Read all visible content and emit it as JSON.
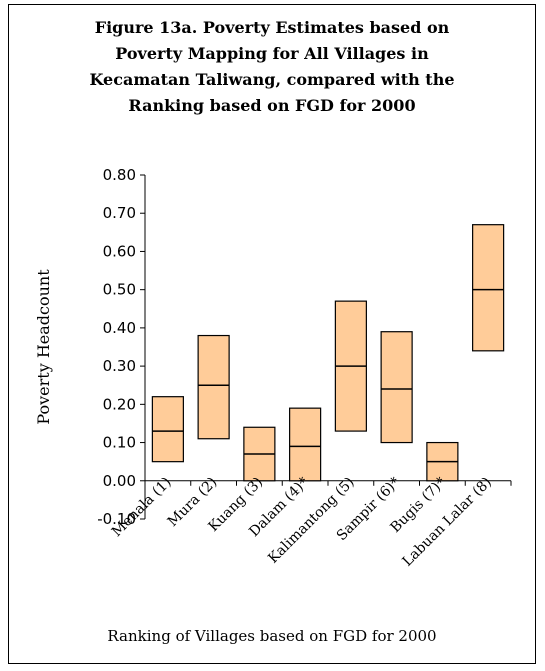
{
  "chart_data": {
    "type": "bar",
    "title_lines": [
      "Figure 13a. Poverty Estimates based on",
      "Poverty Mapping for All Villages in",
      "Kecamatan Taliwang, compared with the",
      "Ranking based on FGD for 2000"
    ],
    "xlabel": "Ranking of Villages based on FGD for 2000",
    "ylabel": "Poverty Headcount",
    "ylim": [
      -0.1,
      0.8
    ],
    "yticks": [
      "-0.10",
      "0.00",
      "0.10",
      "0.20",
      "0.30",
      "0.40",
      "0.50",
      "0.60",
      "0.70",
      "0.80"
    ],
    "categories": [
      "Menala (1)",
      "Mura (2)",
      "Kuang (3)",
      "Dalam (4)*",
      "Kalimantong (5)",
      "Sampir (6)*",
      "Bugis (7)*",
      "Labuan Lalar (8)"
    ],
    "series": [
      {
        "name": "",
        "low": [
          0.05,
          0.11,
          0.0,
          0.0,
          0.13,
          0.1,
          0.0,
          0.34
        ],
        "mid": [
          0.13,
          0.25,
          0.07,
          0.09,
          0.3,
          0.24,
          0.05,
          0.5
        ],
        "high": [
          0.22,
          0.38,
          0.14,
          0.19,
          0.47,
          0.39,
          0.1,
          0.67
        ]
      }
    ],
    "bar_fill": "#FFCC99",
    "grid": false,
    "legend": "none"
  }
}
